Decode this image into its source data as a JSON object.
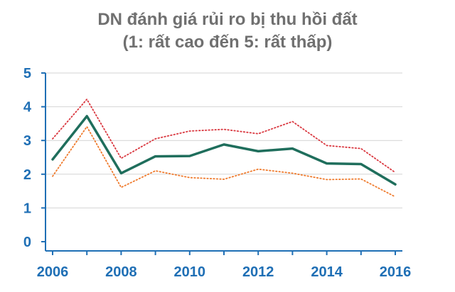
{
  "chart_data": {
    "type": "line",
    "title": "DN đánh giá rủi ro bị thu hồi đất",
    "subtitle": "(1: rất cao đến 5: rất thấp)",
    "xlabel": "",
    "ylabel": "",
    "x": [
      2006,
      2007,
      2008,
      2009,
      2010,
      2011,
      2012,
      2013,
      2014,
      2015,
      2016
    ],
    "x_tick_labels": [
      "2006",
      "2008",
      "2010",
      "2012",
      "2014",
      "2016"
    ],
    "y_tick_labels": [
      "0",
      "1",
      "2",
      "3",
      "4",
      "5"
    ],
    "ylim": [
      0,
      5
    ],
    "xlim": [
      2006,
      2016
    ],
    "grid": true,
    "legend": "none",
    "series": [
      {
        "values": [
          3.05,
          4.22,
          2.47,
          3.05,
          3.28,
          3.33,
          3.2,
          3.56,
          2.85,
          2.76,
          2.05
        ],
        "color": "#d9363e",
        "style": "dotted"
      },
      {
        "values": [
          2.44,
          3.72,
          2.03,
          2.53,
          2.54,
          2.88,
          2.68,
          2.76,
          2.32,
          2.3,
          1.7
        ],
        "color": "#1f6e5c",
        "style": "solid"
      },
      {
        "values": [
          1.94,
          3.41,
          1.61,
          2.1,
          1.9,
          1.85,
          2.15,
          2.03,
          1.84,
          1.86,
          1.33
        ],
        "color": "#ef7a2c",
        "style": "dotted"
      }
    ]
  }
}
